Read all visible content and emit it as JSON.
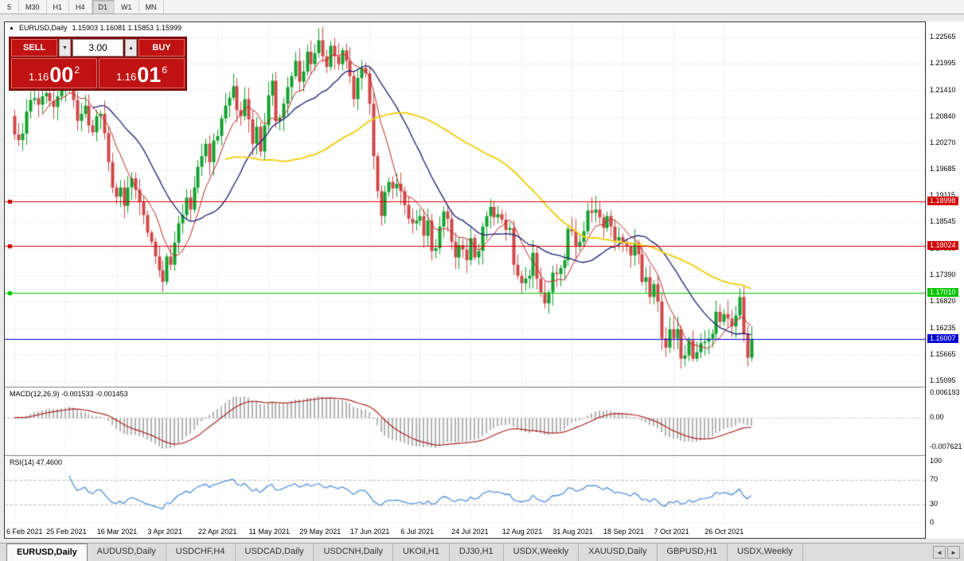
{
  "period_bar": {
    "items": [
      "5",
      "M30",
      "H1",
      "H4",
      "D1",
      "W1",
      "MN"
    ],
    "active": "D1"
  },
  "chart_header": {
    "marker": "▲",
    "symbol": "EURUSD,Daily",
    "ohlc": "1.15903 1.16081 1.15853 1.15999"
  },
  "trade_panel": {
    "sell_label": "SELL",
    "buy_label": "BUY",
    "volume": "3.00",
    "dec_glyph": "▼",
    "inc_glyph": "▲",
    "sell_price": {
      "prefix": "1.16",
      "big": "00",
      "sup": "2"
    },
    "buy_price": {
      "prefix": "1.16",
      "big": "01",
      "sup": "6"
    }
  },
  "bottom_tabs": {
    "scroll_left": "◄",
    "scroll_right": "►",
    "tabs": [
      {
        "label": "EURUSD,Daily",
        "active": true
      },
      {
        "label": "AUDUSD,Daily",
        "active": false
      },
      {
        "label": "USDCHF,H4",
        "active": false
      },
      {
        "label": "USDCAD,Daily",
        "active": false
      },
      {
        "label": "USDCNH,Daily",
        "active": false
      },
      {
        "label": "UKOil,H1",
        "active": false
      },
      {
        "label": "DJ30,H1",
        "active": false
      },
      {
        "label": "USDX,Weekly",
        "active": false
      },
      {
        "label": "XAUUSD,Daily",
        "active": false
      },
      {
        "label": "GBPUSD,H1",
        "active": false
      },
      {
        "label": "USDX,Weekly",
        "active": false
      }
    ]
  },
  "chart_data": {
    "type": "candlestick",
    "symbol": "EURUSD",
    "timeframe": "Daily",
    "ohlc_display": {
      "open": "1.15903",
      "high": "1.16081",
      "low": "1.15853",
      "close": "1.15999"
    },
    "candle_up_color": "#12a12e",
    "candle_down_color": "#d04848",
    "main_scale": {
      "min": 1.1497,
      "max": 1.2289
    },
    "main_axis_ticks": [
      "1.22565",
      "1.21995",
      "1.21410",
      "1.20840",
      "1.20270",
      "1.19685",
      "1.19115",
      "1.18545",
      "1.17960",
      "1.17390",
      "1.16820",
      "1.16235",
      "1.15665",
      "1.15095"
    ],
    "x_labels": [
      "6 Feb 2021",
      "25 Feb 2021",
      "16 Mar 2021",
      "3 Apr 2021",
      "22 Apr 2021",
      "11 May 2021",
      "29 May 2021",
      "17 Jun 2021",
      "6 Jul 2021",
      "24 Jul 2021",
      "12 Aug 2021",
      "31 Aug 2021",
      "18 Sep 2021",
      "7 Oct 2021",
      "26 Oct 2021"
    ],
    "label_every_n_candles": 13,
    "closes": [
      1.2045,
      1.2033,
      1.2047,
      1.2095,
      1.212,
      1.2124,
      1.211,
      1.2128,
      1.2135,
      1.2118,
      1.2105,
      1.2128,
      1.2145,
      1.2155,
      1.217,
      1.212,
      1.2075,
      1.209,
      1.2108,
      1.2065,
      1.205,
      1.2085,
      1.209,
      1.2048,
      1.1985,
      1.193,
      1.191,
      1.193,
      1.189,
      1.193,
      1.195,
      1.1925,
      1.1898,
      1.187,
      1.1832,
      1.1812,
      1.178,
      1.175,
      1.1725,
      1.178,
      1.1762,
      1.181,
      1.1852,
      1.187,
      1.1908,
      1.1882,
      1.193,
      1.1975,
      1.1998,
      1.2025,
      1.1985,
      1.2032,
      1.2042,
      1.208,
      1.2108,
      1.2125,
      1.215,
      1.2098,
      1.2085,
      1.2122,
      1.2078,
      1.2025,
      1.2062,
      1.2008,
      1.2065,
      1.213,
      1.2162,
      1.2075,
      1.2082,
      1.2112,
      1.2148,
      1.2172,
      1.2205,
      1.216,
      1.2182,
      1.2225,
      1.2198,
      1.2222,
      1.225,
      1.2215,
      1.2192,
      1.2238,
      1.2215,
      1.2198,
      1.2228,
      1.2205,
      1.2172,
      1.2122,
      1.2168,
      1.219,
      1.2178,
      1.2112,
      1.1998,
      1.1922,
      1.1868,
      1.192,
      1.1942,
      1.1928,
      1.1938,
      1.1922,
      1.1892,
      1.1862,
      1.1852,
      1.1858,
      1.1868,
      1.1825,
      1.1858,
      1.1792,
      1.1798,
      1.1845,
      1.1878,
      1.1862,
      1.1812,
      1.1778,
      1.1805,
      1.1795,
      1.1772,
      1.182,
      1.1778,
      1.1792,
      1.1845,
      1.1868,
      1.1888,
      1.1865,
      1.1872,
      1.186,
      1.1838,
      1.1842,
      1.1762,
      1.1738,
      1.1722,
      1.1732,
      1.1738,
      1.1788,
      1.1732,
      1.1702,
      1.1678,
      1.1702,
      1.1745,
      1.1742,
      1.1755,
      1.1772,
      1.184,
      1.1835,
      1.1802,
      1.1812,
      1.1835,
      1.188,
      1.1875,
      1.1882,
      1.1865,
      1.1842,
      1.1868,
      1.1845,
      1.1815,
      1.1822,
      1.1812,
      1.1802,
      1.1782,
      1.181,
      1.1785,
      1.1725,
      1.1735,
      1.1692,
      1.172,
      1.1682,
      1.1602,
      1.1582,
      1.1622,
      1.1602,
      1.1622,
      1.1558,
      1.1565,
      1.1598,
      1.1558,
      1.1572,
      1.1592,
      1.1595,
      1.1602,
      1.1612,
      1.166,
      1.1638,
      1.1655,
      1.1645,
      1.1628,
      1.1652,
      1.1692,
      1.1612,
      1.156,
      1.16
    ],
    "moving_averages": [
      {
        "period": 8,
        "color": "#c42525",
        "width": 1
      },
      {
        "period": 21,
        "color": "#1c1c74",
        "width": 1.3
      },
      {
        "period": 55,
        "color": "#efd21f",
        "width": 2
      }
    ],
    "hlines": [
      {
        "label": "1.18998",
        "price": 1.18998,
        "color": "#d40000",
        "handle": true
      },
      {
        "label": "1.18024",
        "price": 1.18024,
        "color": "#d40000",
        "handle": true
      },
      {
        "label": "1.17010",
        "price": 1.1701,
        "color": "#00c400",
        "handle": true
      },
      {
        "label": "1.16007",
        "price": 1.16007,
        "color": "#0000d4",
        "handle": false
      }
    ],
    "macd": {
      "label": "MACD(12,26,9) -0.001533 -0.001453",
      "fast": 12,
      "slow": 26,
      "signal": 9,
      "values": "-0.001533 -0.001453",
      "histogram_color": "#b2b2b2",
      "signal_color": "#aa2222",
      "scale": {
        "min": -0.009592,
        "max": 0.007591
      },
      "axis_ticks": [
        {
          "label": "0.006193",
          "value": 0.006193
        },
        {
          "label": "0.00",
          "value": 0
        },
        {
          "label": "-0.007621",
          "value": -0.007621
        }
      ]
    },
    "rsi": {
      "label": "RSI(14) 47.4600",
      "period": 14,
      "current": "47.4600",
      "line_color": "#2f7ed8",
      "levels": [
        70,
        30
      ],
      "scale": {
        "min": -1.3,
        "max": 109
      },
      "axis_ticks": [
        {
          "label": "100",
          "value": 100
        },
        {
          "label": "70",
          "value": 70
        },
        {
          "label": "30",
          "value": 30
        },
        {
          "label": "0",
          "value": 0
        }
      ]
    }
  }
}
